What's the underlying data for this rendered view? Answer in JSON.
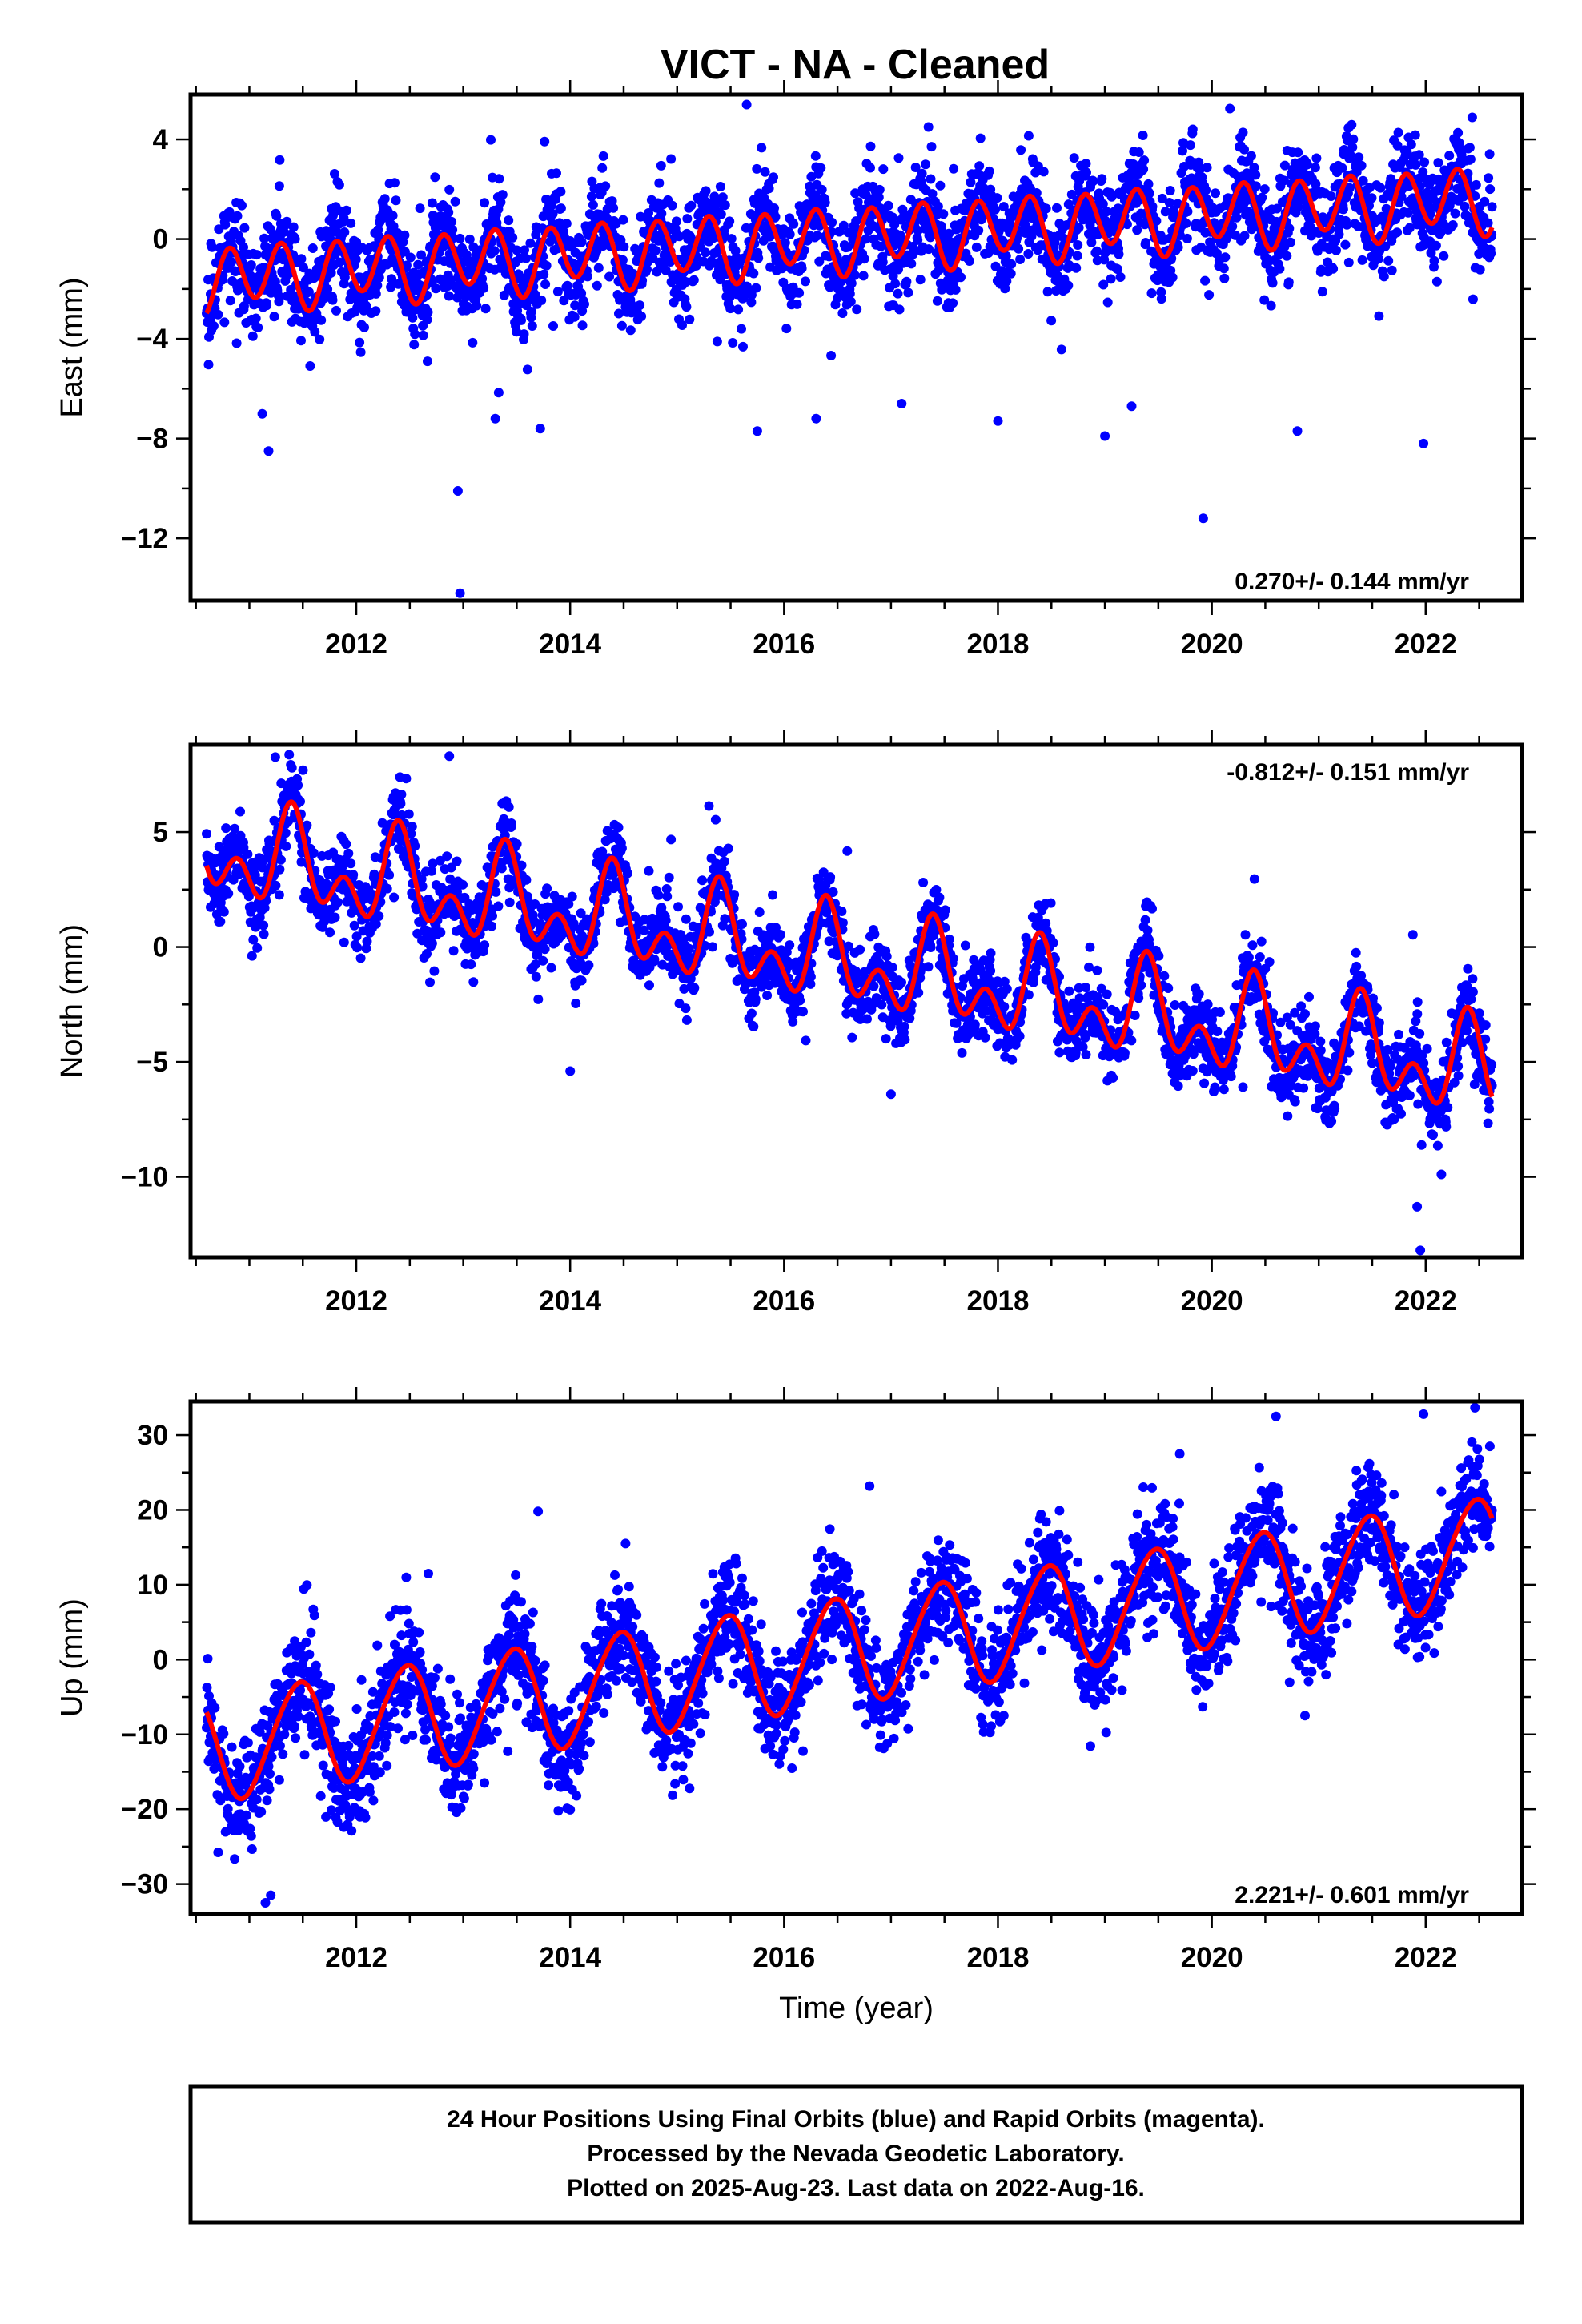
{
  "title": "VICT  - NA - Cleaned",
  "colors": {
    "points": "#0000ff",
    "fit": "#ff0000",
    "frame": "#000000"
  },
  "footer": {
    "line1": "24 Hour Positions Using Final Orbits (blue) and Rapid Orbits (magenta).",
    "line2": "Processed by the Nevada Geodetic Laboratory.",
    "line3": "Plotted on 2025-Aug-23. Last data on 2022-Aug-16."
  },
  "chart_data": [
    {
      "type": "scatter",
      "component": "east",
      "ylabel": "East (mm)",
      "xlabel": "",
      "xlim": [
        2010.45,
        2022.9
      ],
      "ylim": [
        -14.5,
        5.8
      ],
      "xticks": [
        2012,
        2014,
        2016,
        2018,
        2020,
        2022
      ],
      "yticks": [
        4,
        0,
        -4,
        -8,
        -12
      ],
      "ytick_labels": [
        "4",
        "0",
        "−4",
        "−8",
        "−12"
      ],
      "data_start": 2010.6,
      "data_end": 2022.62,
      "rate_text": "0.270+/- 0.144 mm/yr",
      "rate_position": "bottom-right",
      "fit": {
        "offset_at_start": -1.6,
        "rate_mm_per_yr": 0.27,
        "annual_sin": 0.15,
        "annual_cos": 0.3,
        "semiannual_sin": -0.8,
        "semiannual_cos": -0.9
      },
      "scatter_sd": 1.0,
      "outliers": [
        [
          2012.95,
          -10.1
        ],
        [
          2012.97,
          -14.2
        ],
        [
          2011.18,
          -8.5
        ],
        [
          2013.72,
          -7.6
        ],
        [
          2013.3,
          -7.2
        ],
        [
          2016.3,
          -7.2
        ],
        [
          2015.75,
          -7.7
        ],
        [
          2017.1,
          -6.6
        ],
        [
          2018.0,
          -7.3
        ],
        [
          2019.0,
          -7.9
        ],
        [
          2019.25,
          -6.7
        ],
        [
          2019.92,
          -11.2
        ],
        [
          2020.8,
          -7.7
        ],
        [
          2021.98,
          -8.2
        ],
        [
          2015.65,
          5.4
        ],
        [
          2017.35,
          4.5
        ]
      ],
      "series": [
        {
          "name": "",
          "kind": "points"
        },
        {
          "name": "",
          "kind": "fit"
        }
      ]
    },
    {
      "type": "scatter",
      "component": "north",
      "ylabel": "North (mm)",
      "xlabel": "",
      "xlim": [
        2010.45,
        2022.9
      ],
      "ylim": [
        -13.5,
        8.8
      ],
      "xticks": [
        2012,
        2014,
        2016,
        2018,
        2020,
        2022
      ],
      "yticks": [
        5,
        0,
        -5,
        -10
      ],
      "ytick_labels": [
        "5",
        "0",
        "−5",
        "−10"
      ],
      "data_start": 2010.6,
      "data_end": 2022.62,
      "rate_text": "-0.812+/- 0.151 mm/yr",
      "rate_position": "top-right",
      "fit": {
        "offset_at_start": 4.2,
        "rate_mm_per_yr": -0.812,
        "annual_sin": 0.8,
        "annual_cos": -1.2,
        "semiannual_sin": -1.3,
        "semiannual_cos": 0.25
      },
      "scatter_sd": 0.85,
      "outliers": [
        [
          2012.87,
          8.3
        ],
        [
          2021.95,
          -13.2
        ],
        [
          2021.92,
          -11.3
        ],
        [
          2017.0,
          -6.4
        ],
        [
          2014.0,
          -5.4
        ]
      ],
      "series": [
        {
          "name": "",
          "kind": "points"
        },
        {
          "name": "",
          "kind": "fit"
        }
      ]
    },
    {
      "type": "scatter",
      "component": "up",
      "ylabel": "Up (mm)",
      "xlabel": "Time (year)",
      "xlim": [
        2010.45,
        2022.9
      ],
      "ylim": [
        -34.0,
        34.5
      ],
      "xticks": [
        2012,
        2014,
        2016,
        2018,
        2020,
        2022
      ],
      "yticks": [
        30,
        20,
        10,
        0,
        -10,
        -20,
        -30
      ],
      "ytick_labels": [
        "30",
        "20",
        "10",
        "0",
        "−10",
        "−20",
        "−30"
      ],
      "data_start": 2010.6,
      "data_end": 2022.62,
      "rate_text": "2.221+/- 0.601 mm/yr",
      "rate_position": "bottom-right",
      "fit": {
        "offset_at_start": -12.0,
        "rate_mm_per_yr": 2.221,
        "annual_sin": 2.0,
        "annual_cos": -6.8,
        "semiannual_sin": 0.6,
        "semiannual_cos": 0.2
      },
      "scatter_sd": 3.6,
      "outliers": [
        [
          2011.15,
          -32.5
        ],
        [
          2011.2,
          -31.5
        ],
        [
          2020.6,
          32.5
        ],
        [
          2021.98,
          32.8
        ],
        [
          2016.8,
          23.2
        ],
        [
          2022.6,
          28.5
        ],
        [
          2019.7,
          27.5
        ],
        [
          2013.7,
          19.8
        ]
      ],
      "series": [
        {
          "name": "",
          "kind": "points"
        },
        {
          "name": "",
          "kind": "fit"
        }
      ]
    }
  ]
}
